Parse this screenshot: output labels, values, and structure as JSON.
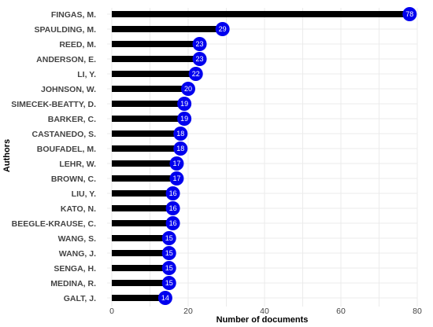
{
  "chart_data": {
    "type": "lollipop",
    "xlabel": "Number of documents",
    "ylabel": "Authors",
    "xlim": [
      0,
      80
    ],
    "x_ticks": [
      0,
      20,
      40,
      60,
      80
    ],
    "grid": true,
    "colors": {
      "bar": "#000000",
      "dot": "#0000ee",
      "label": "#ffffff",
      "grid": "#ebebeb"
    },
    "categories": [
      "FINGAS, M.",
      "SPAULDING, M.",
      "REED, M.",
      "ANDERSON, E.",
      "LI, Y.",
      "JOHNSON, W.",
      "SIMECEK-BEATTY, D.",
      "BARKER, C.",
      "CASTANEDO, S.",
      "BOUFADEL, M.",
      "LEHR, W.",
      "BROWN, C.",
      "LIU, Y.",
      "KATO, N.",
      "BEEGLE-KRAUSE, C.",
      "WANG, S.",
      "WANG, J.",
      "SENGA, H.",
      "MEDINA, R.",
      "GALT, J."
    ],
    "values": [
      78,
      29,
      23,
      23,
      22,
      20,
      19,
      19,
      18,
      18,
      17,
      17,
      16,
      16,
      16,
      15,
      15,
      15,
      15,
      14
    ]
  }
}
